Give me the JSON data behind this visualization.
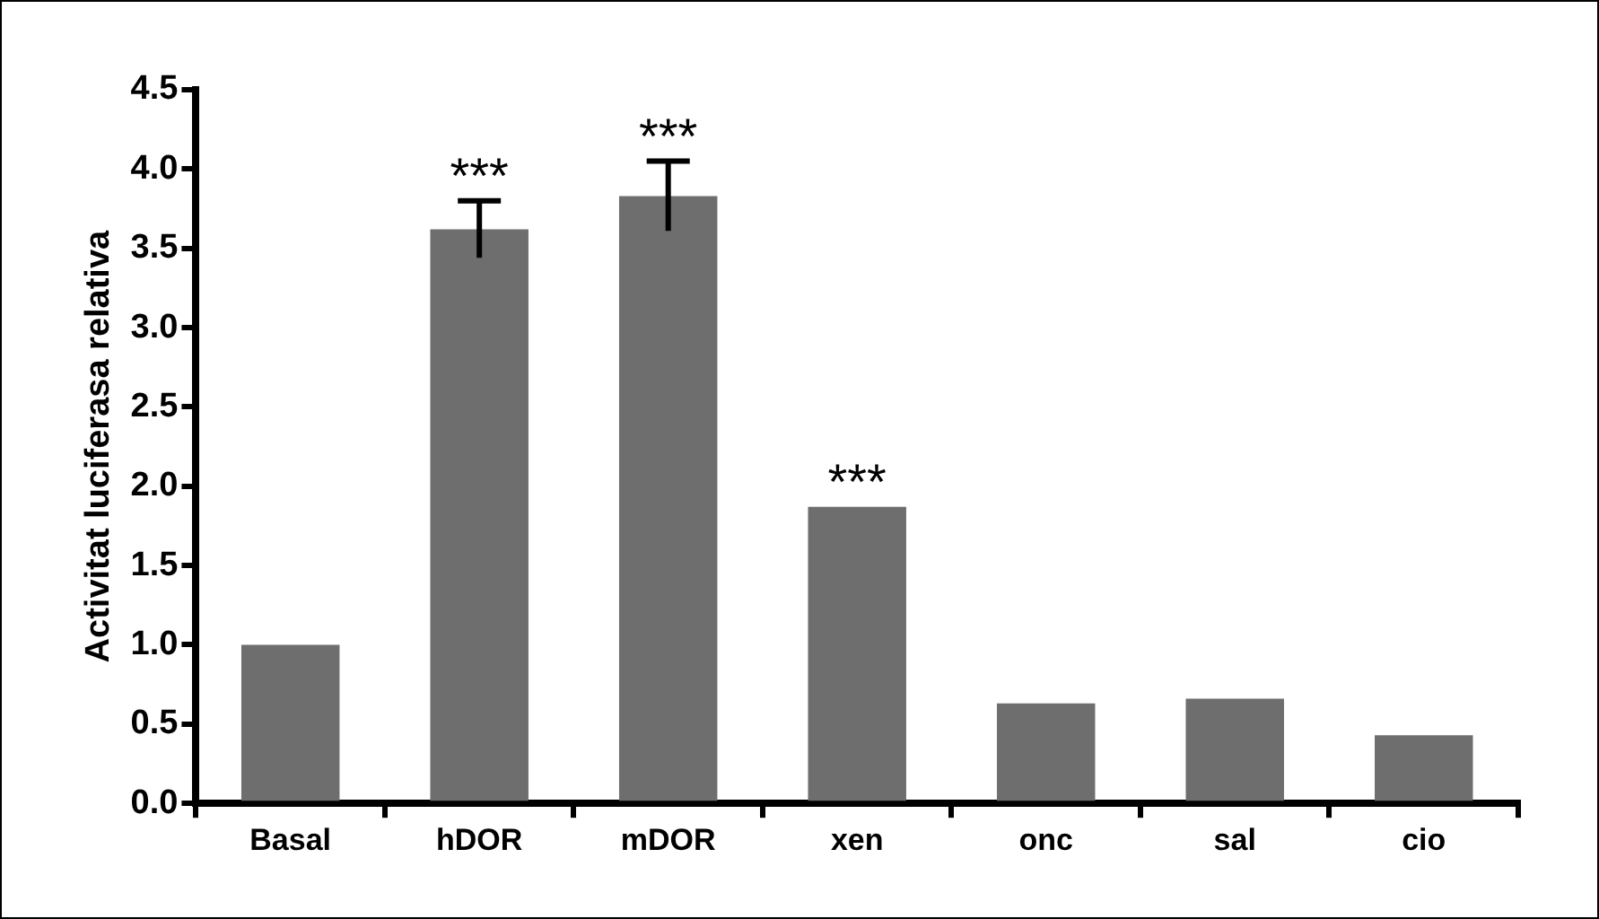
{
  "chart_data": {
    "type": "bar",
    "ylabel": "Activitat luciferasa relativa",
    "categories": [
      "Basal",
      "hDOR",
      "mDOR",
      "xen",
      "onc",
      "sal",
      "cio"
    ],
    "values": [
      1.0,
      3.62,
      3.83,
      1.87,
      0.63,
      0.66,
      0.43
    ],
    "errors": [
      null,
      0.18,
      0.22,
      null,
      null,
      null,
      null
    ],
    "color": "#6e6e6e",
    "ylim": [
      0,
      4.5
    ],
    "yticks": [
      {
        "value": 0,
        "label": "0.0"
      },
      {
        "value": 0.5,
        "label": "0.5"
      },
      {
        "value": 1,
        "label": "1.0"
      },
      {
        "value": 1.5,
        "label": "1.5"
      },
      {
        "value": 2,
        "label": "2.0"
      },
      {
        "value": 2.5,
        "label": "2.5"
      },
      {
        "value": 3,
        "label": "3.0"
      },
      {
        "value": 3.5,
        "label": "3.5"
      },
      {
        "value": 4,
        "label": "4.0"
      },
      {
        "value": 4.5,
        "label": "4.5"
      }
    ],
    "annotations": [
      {
        "text": "***",
        "x": "hDOR",
        "y": 3.8
      },
      {
        "text": "***",
        "x": "mDOR",
        "y": 4.05
      },
      {
        "text": "***",
        "x": "xen",
        "y": 1.87
      }
    ],
    "grid": false,
    "legend": false
  }
}
